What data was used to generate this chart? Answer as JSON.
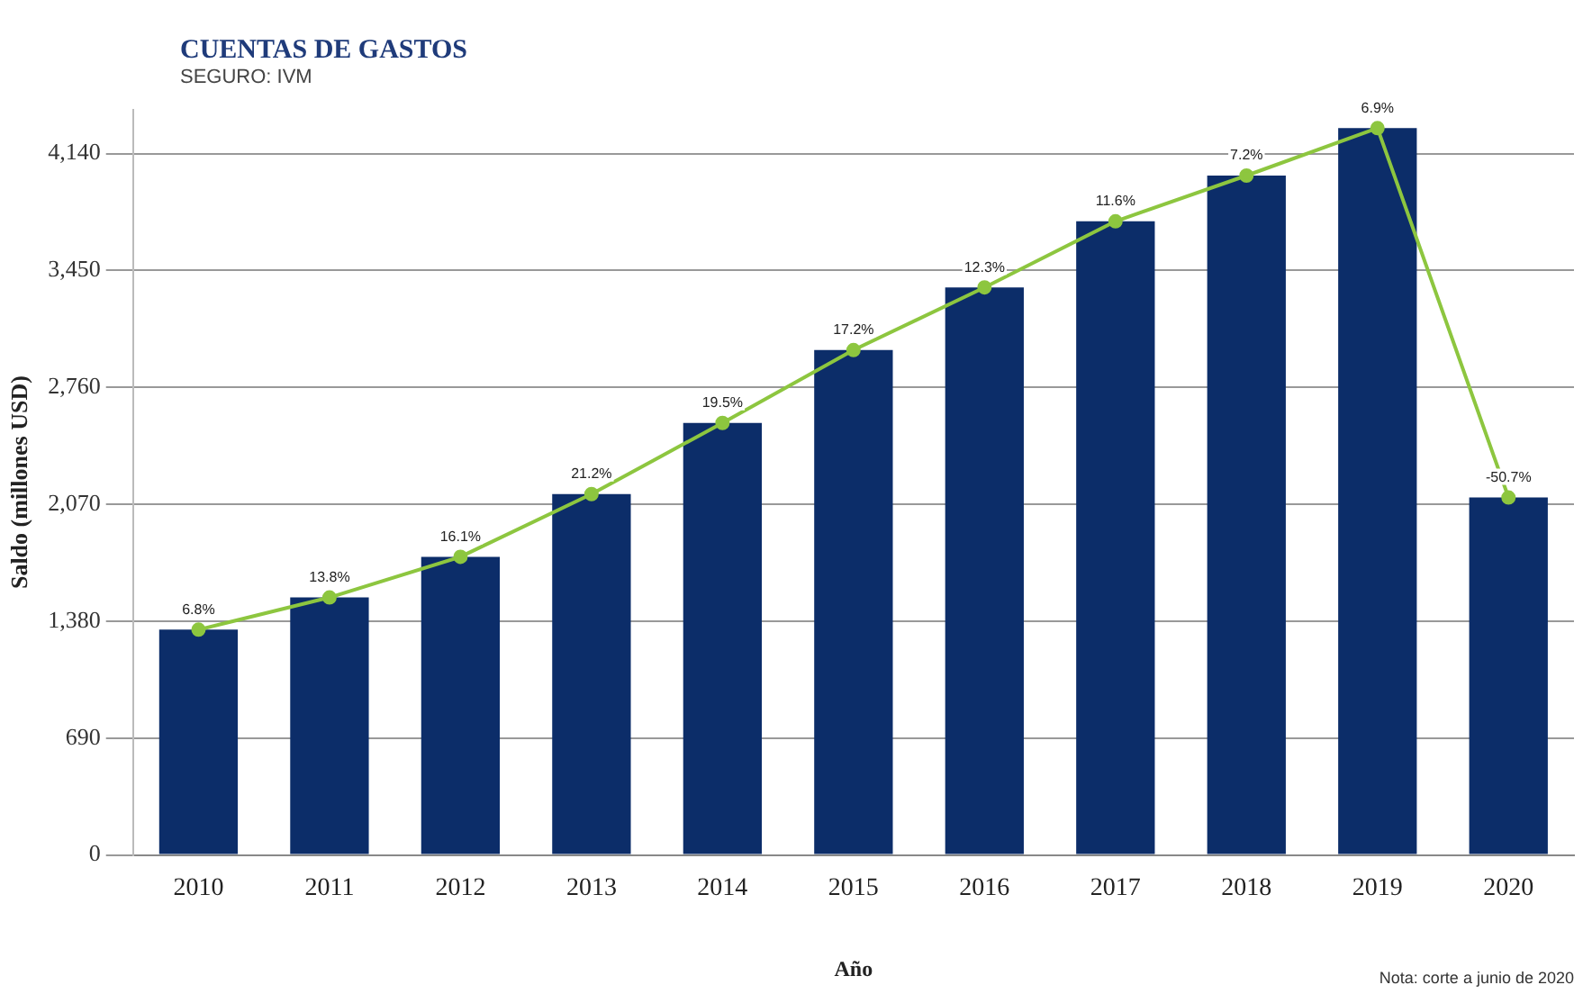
{
  "chart_data": {
    "type": "bar",
    "title": "CUENTAS DE GASTOS",
    "subtitle": "SEGURO: IVM",
    "xlabel": "Año",
    "ylabel": "Saldo (millones USD)",
    "categories": [
      "2010",
      "2011",
      "2012",
      "2013",
      "2014",
      "2015",
      "2016",
      "2017",
      "2018",
      "2019",
      "2020"
    ],
    "series": [
      {
        "color": "#0c2d69",
        "values": [
          1330,
          1520,
          1760,
          2130,
          2550,
          2980,
          3350,
          3740,
          4010,
          4290,
          2110
        ]
      },
      {
        "type": "line",
        "color": "#8dc63f",
        "marker": "circle",
        "values": [
          1330,
          1520,
          1760,
          2130,
          2550,
          2980,
          3350,
          3740,
          4010,
          4290,
          2110
        ]
      }
    ],
    "ylim": [
      0,
      4400
    ],
    "yticks": [
      0,
      {
        "value": 690,
        "label": "690"
      },
      {
        "value": 1380,
        "label": "1,380"
      },
      {
        "value": 2070,
        "label": "2,070"
      },
      {
        "value": 2760,
        "label": "2,760"
      },
      {
        "value": 3450,
        "label": "3,450"
      },
      {
        "value": 4140,
        "label": "4,140"
      }
    ],
    "grid": "y",
    "legend": false,
    "annotations": [
      {
        "text": "6.8%",
        "x": "2010",
        "y": 1330
      },
      {
        "text": "13.8%",
        "x": "2011",
        "y": 1520
      },
      {
        "text": "16.1%",
        "x": "2012",
        "y": 1760
      },
      {
        "text": "21.2%",
        "x": "2013",
        "y": 2130
      },
      {
        "text": "19.5%",
        "x": "2014",
        "y": 2550
      },
      {
        "text": "17.2%",
        "x": "2015",
        "y": 2980
      },
      {
        "text": "12.3%",
        "x": "2016",
        "y": 3350
      },
      {
        "text": "11.6%",
        "x": "2017",
        "y": 3740
      },
      {
        "text": "7.2%",
        "x": "2018",
        "y": 4010
      },
      {
        "text": "6.9%",
        "x": "2019",
        "y": 4290
      },
      {
        "text": "-50.7%",
        "x": "2020",
        "y": 2110
      },
      "Nota: corte a junio de 2020"
    ]
  }
}
